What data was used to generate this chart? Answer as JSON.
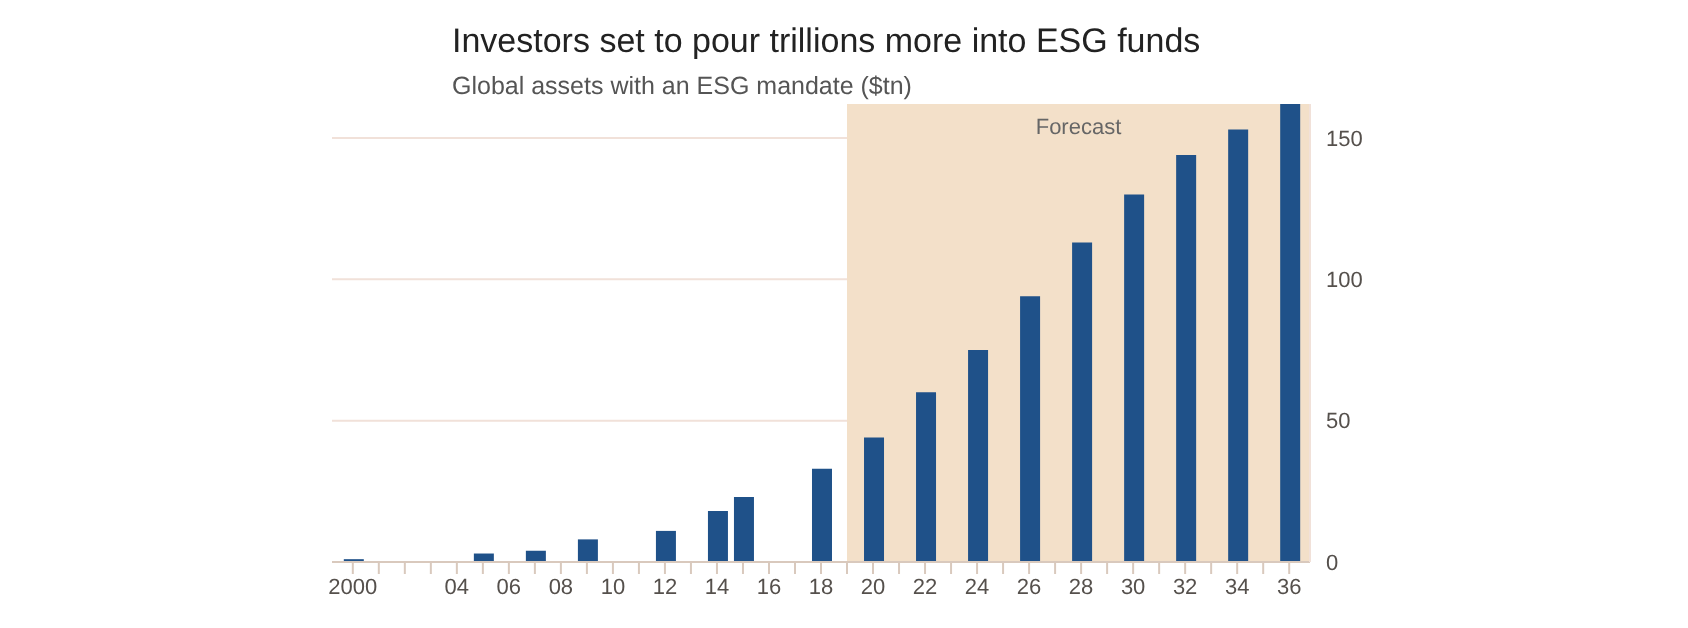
{
  "chart_data": {
    "type": "bar",
    "title": "Investors set to pour trillions more into ESG funds",
    "subtitle": "Global assets with an ESG mandate ($tn)",
    "x": [
      2000,
      2005,
      2007,
      2009,
      2012,
      2014,
      2015,
      2018,
      2020,
      2022,
      2024,
      2026,
      2028,
      2030,
      2032,
      2034,
      2036
    ],
    "values": [
      1,
      3,
      4,
      8,
      11,
      18,
      23,
      33,
      44,
      60,
      75,
      94,
      113,
      130,
      144,
      153,
      162
    ],
    "color": "#1f5189",
    "xlim": [
      1999.2,
      2036.8
    ],
    "xticks": [
      2000,
      {
        "value": 2001,
        "label": null
      },
      {
        "value": 2002,
        "label": null
      },
      {
        "value": 2003,
        "label": null
      },
      {
        "value": 2004,
        "label": "04"
      },
      {
        "value": 2005,
        "label": null
      },
      {
        "value": 2006,
        "label": "06"
      },
      {
        "value": 2007,
        "label": null
      },
      {
        "value": 2008,
        "label": "08"
      },
      {
        "value": 2009,
        "label": null
      },
      {
        "value": 2010,
        "label": "10"
      },
      {
        "value": 2011,
        "label": null
      },
      {
        "value": 2012,
        "label": "12"
      },
      {
        "value": 2013,
        "label": null
      },
      {
        "value": 2014,
        "label": "14"
      },
      {
        "value": 2015,
        "label": null
      },
      {
        "value": 2016,
        "label": "16"
      },
      {
        "value": 2017,
        "label": null
      },
      {
        "value": 2018,
        "label": "18"
      },
      {
        "value": 2019,
        "label": null
      },
      {
        "value": 2020,
        "label": "20"
      },
      {
        "value": 2021,
        "label": null
      },
      {
        "value": 2022,
        "label": "22"
      },
      {
        "value": 2023,
        "label": null
      },
      {
        "value": 2024,
        "label": "24"
      },
      {
        "value": 2025,
        "label": null
      },
      {
        "value": 2026,
        "label": "26"
      },
      {
        "value": 2027,
        "label": null
      },
      {
        "value": 2028,
        "label": "28"
      },
      {
        "value": 2029,
        "label": null
      },
      {
        "value": 2030,
        "label": "30"
      },
      {
        "value": 2031,
        "label": null
      },
      {
        "value": 2032,
        "label": "32"
      },
      {
        "value": 2033,
        "label": null
      },
      {
        "value": 2034,
        "label": "34"
      },
      {
        "value": 2035,
        "label": null
      },
      {
        "value": 2036,
        "label": "36"
      }
    ],
    "ylim": [
      0,
      162
    ],
    "yticks": [
      0,
      50,
      100,
      150
    ],
    "grid": "y",
    "bands": [
      {
        "axis": "x",
        "from": 2019,
        "to": 2036.8,
        "label": "Forecast",
        "color": "#f3e0c9"
      }
    ]
  }
}
